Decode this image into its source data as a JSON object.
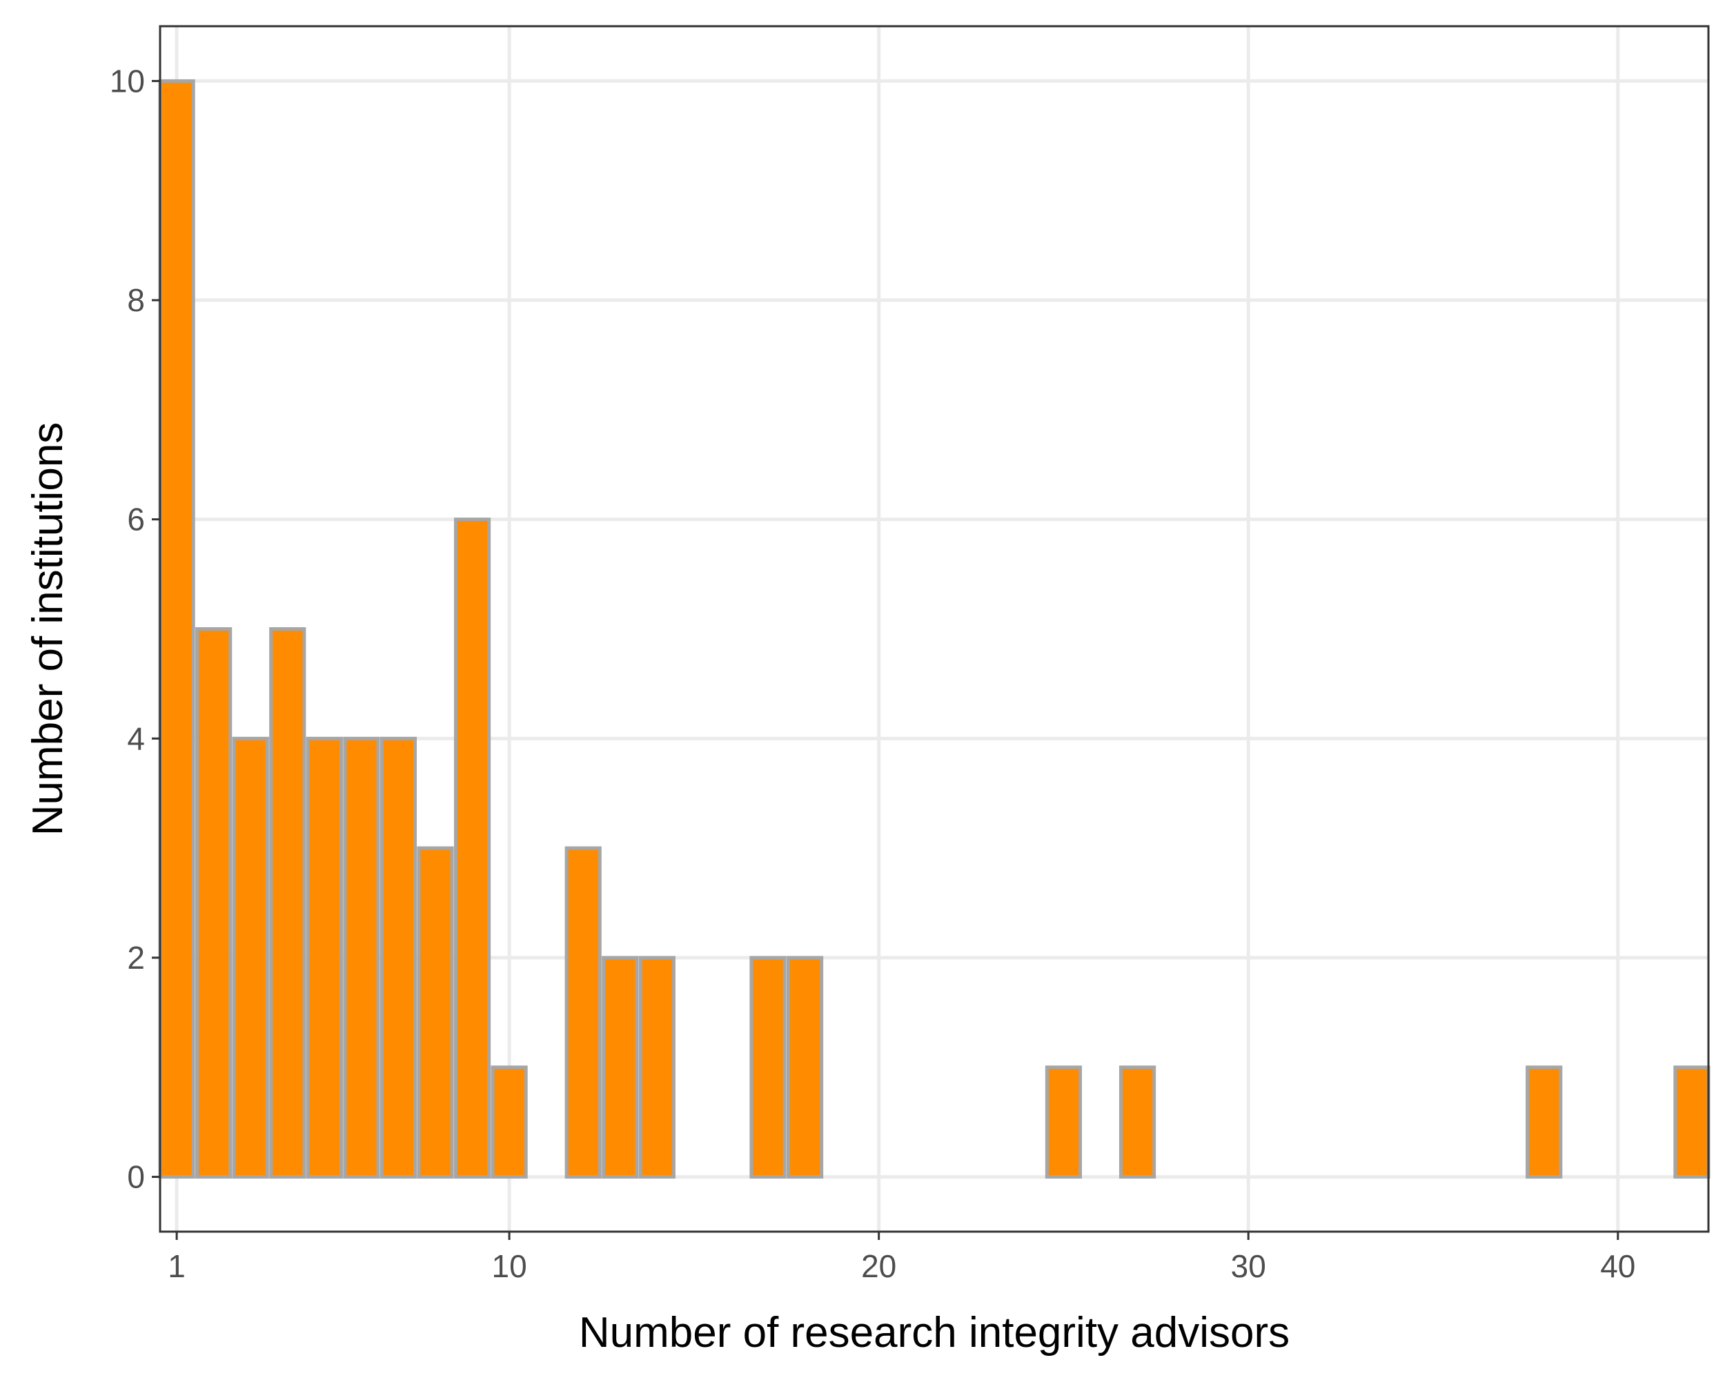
{
  "chart_data": {
    "type": "bar",
    "title": "",
    "xlabel": "Number of research integrity advisors",
    "ylabel": "Number of institutions",
    "x": [
      1,
      2,
      3,
      4,
      5,
      6,
      7,
      8,
      9,
      10,
      12,
      13,
      14,
      17,
      18,
      25,
      27,
      38,
      42
    ],
    "values": [
      10,
      5,
      4,
      5,
      4,
      4,
      4,
      3,
      6,
      1,
      3,
      2,
      2,
      2,
      2,
      1,
      1,
      1,
      1
    ],
    "xlim": [
      0.55,
      42.45
    ],
    "ylim": [
      -0.5,
      10.5
    ],
    "xticks": [
      1,
      10,
      20,
      30,
      40
    ],
    "yticks": [
      0,
      2,
      4,
      6,
      8,
      10
    ],
    "grid": true,
    "legend": "none",
    "colors": {
      "bar_fill": "#ff8c00",
      "bar_stroke": "#a6a6a6",
      "grid": "#ebebeb"
    }
  }
}
